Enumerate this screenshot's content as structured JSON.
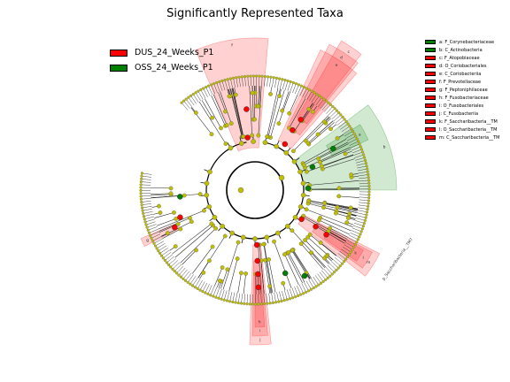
{
  "chart_data": {
    "type": "cladogram",
    "title": "Significantly Represented Taxa",
    "groups": [
      {
        "name": "DUS_24_Weeks_P1",
        "color": "#ff0000"
      },
      {
        "name": "OSS_24_Weeks_P1",
        "color": "#008000"
      }
    ],
    "background_node_color": "#bfbf00",
    "taxa": [
      {
        "key": "a",
        "label": "a: F_Corynebacteriaceae",
        "group": "OSS_24_Weeks_P1",
        "color": "#008000"
      },
      {
        "key": "b",
        "label": "b: C_Actinobacteria",
        "group": "OSS_24_Weeks_P1",
        "color": "#008000"
      },
      {
        "key": "c",
        "label": "c: F_Atopobiaceae",
        "group": "DUS_24_Weeks_P1",
        "color": "#ff0000"
      },
      {
        "key": "d",
        "label": "d: O_Coriobacteriales",
        "group": "DUS_24_Weeks_P1",
        "color": "#ff0000"
      },
      {
        "key": "e",
        "label": "e: C_Coriobacteriia",
        "group": "DUS_24_Weeks_P1",
        "color": "#ff0000"
      },
      {
        "key": "f",
        "label": "f: F_Prevotellaceae",
        "group": "DUS_24_Weeks_P1",
        "color": "#ff0000"
      },
      {
        "key": "g",
        "label": "g: F_Peptoniphilaceae",
        "group": "DUS_24_Weeks_P1",
        "color": "#ff0000"
      },
      {
        "key": "h",
        "label": "h: F_Fusobacteriaceae",
        "group": "DUS_24_Weeks_P1",
        "color": "#ff0000"
      },
      {
        "key": "i",
        "label": "i: O_Fusobacteriales",
        "group": "DUS_24_Weeks_P1",
        "color": "#ff0000"
      },
      {
        "key": "j",
        "label": "j: C_Fusobacteriia",
        "group": "DUS_24_Weeks_P1",
        "color": "#ff0000"
      },
      {
        "key": "k",
        "label": "k: F_Saccharibacteria__TM",
        "group": "DUS_24_Weeks_P1",
        "color": "#ff0000"
      },
      {
        "key": "l",
        "label": "l: O_Saccharibacteria__TM",
        "group": "DUS_24_Weeks_P1",
        "color": "#ff0000"
      },
      {
        "key": "m",
        "label": "m: C_Saccharibacteria__TM",
        "group": "DUS_24_Weeks_P1",
        "color": "#ff0000"
      }
    ],
    "phylum_labels": [
      {
        "text": "p_Saccharibacteria__TM7",
        "group": "DUS_24_Weeks_P1"
      }
    ]
  }
}
